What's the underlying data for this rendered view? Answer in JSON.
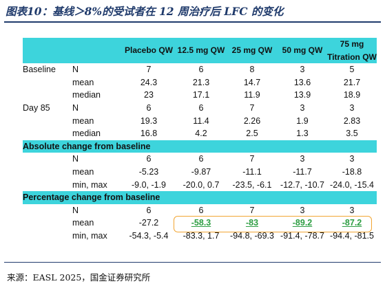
{
  "title": "图表10：基线＞8%的受试者在 12 周治疗后 LFC 的变化",
  "source": "来源：EASL 2025，国金证券研究所",
  "columns": [
    "",
    "",
    "Placebo QW",
    "12.5 mg QW",
    "25 mg QW",
    "50 mg QW",
    "75 mg Titration QW"
  ],
  "col_headers": {
    "c0": "Placebo QW",
    "c1": "12.5 mg QW",
    "c2": "25 mg QW",
    "c3": "50 mg QW",
    "c4a": "75 mg",
    "c4b": "Titration QW"
  },
  "rows": [
    {
      "group": "Baseline",
      "stat": "N",
      "values": [
        "7",
        "6",
        "8",
        "3",
        "5"
      ]
    },
    {
      "group": "",
      "stat": "mean",
      "values": [
        "24.3",
        "21.3",
        "14.7",
        "13.6",
        "21.7"
      ]
    },
    {
      "group": "",
      "stat": "median",
      "values": [
        "23",
        "17.1",
        "11.9",
        "13.9",
        "18.9"
      ]
    },
    {
      "group": "Day 85",
      "stat": "N",
      "values": [
        "6",
        "6",
        "7",
        "3",
        "3"
      ]
    },
    {
      "group": "",
      "stat": "mean",
      "values": [
        "19.3",
        "11.4",
        "2.26",
        "1.9",
        "2.83"
      ]
    },
    {
      "group": "",
      "stat": "median",
      "values": [
        "16.8",
        "4.2",
        "2.5",
        "1.3",
        "3.5"
      ]
    }
  ],
  "section_abs": "Absolute change from baseline",
  "abs_rows": [
    {
      "stat": "N",
      "values": [
        "6",
        "6",
        "7",
        "3",
        "3"
      ]
    },
    {
      "stat": "mean",
      "values": [
        "-5.23",
        "-9.87",
        "-11.1",
        "-11.7",
        "-18.8"
      ]
    },
    {
      "stat": "min, max",
      "values": [
        "-9.0, -1.9",
        "-20.0, 0.7",
        "-23.5, -6.1",
        "-12.7, -10.7",
        "-24.0, -15.4"
      ]
    }
  ],
  "section_pct": "Percentage change from baseline",
  "pct_rows": [
    {
      "stat": "N",
      "values": [
        "6",
        "6",
        "7",
        "3",
        "3"
      ]
    },
    {
      "stat": "mean",
      "values": [
        "-27.2",
        "-58.3",
        "-83",
        "-89.2",
        "-87.2"
      ]
    },
    {
      "stat": "min, max",
      "values": [
        "-54.3, -5.4",
        "-83.3, 1.7",
        "-94.8, -69.3",
        "-91.4, -78.7",
        "-94.4, -81.5"
      ]
    }
  ],
  "highlight_color": "#2e9e43",
  "accent_color": "#3dd4dc"
}
